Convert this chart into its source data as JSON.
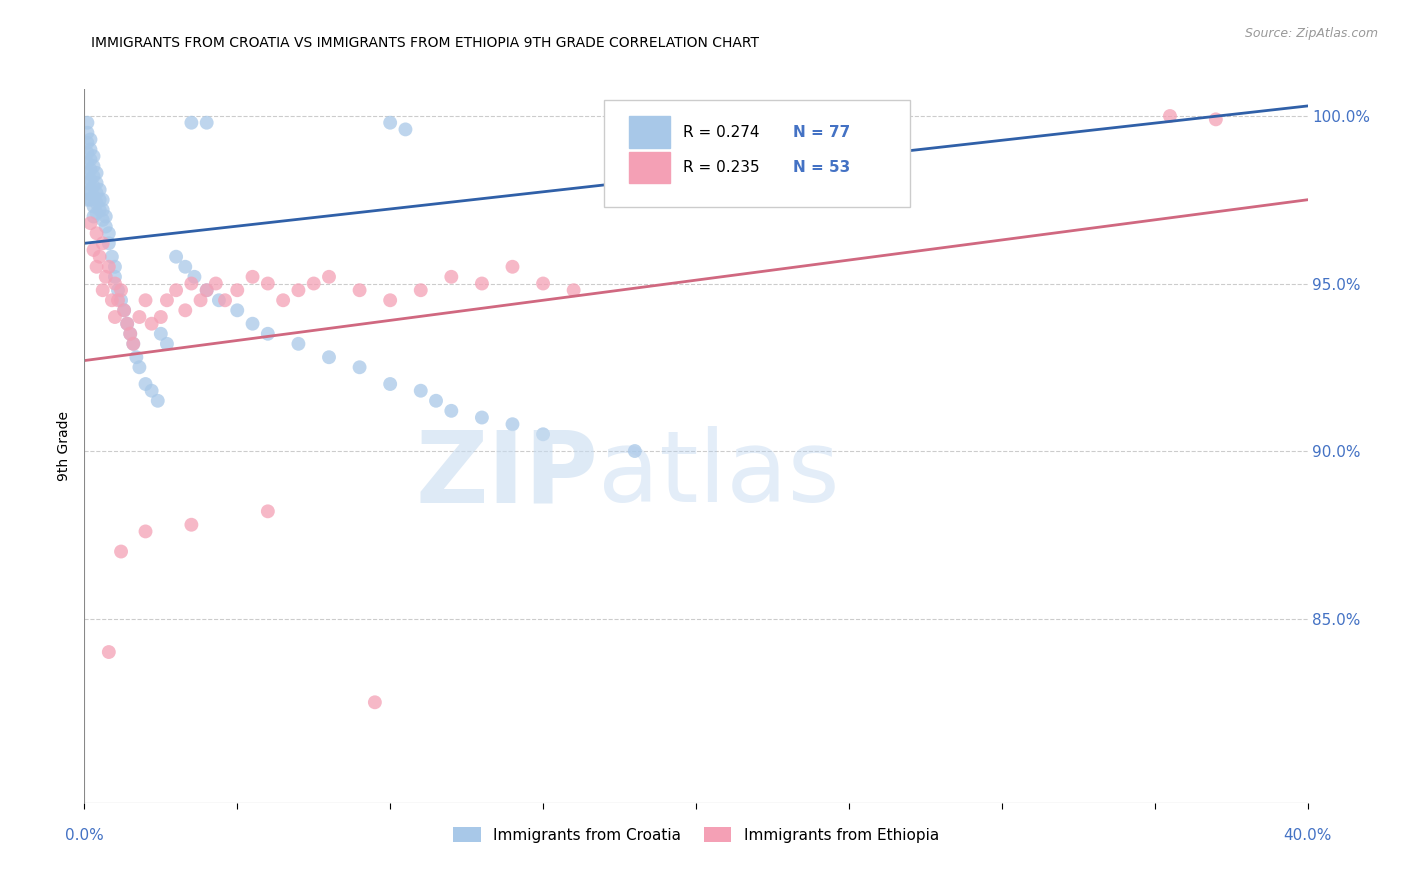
{
  "title": "IMMIGRANTS FROM CROATIA VS IMMIGRANTS FROM ETHIOPIA 9TH GRADE CORRELATION CHART",
  "source": "Source: ZipAtlas.com",
  "ylabel": "9th Grade",
  "yticks": [
    "100.0%",
    "95.0%",
    "90.0%",
    "85.0%"
  ],
  "ytick_vals": [
    1.0,
    0.95,
    0.9,
    0.85
  ],
  "color_croatia": "#A8C8E8",
  "color_ethiopia": "#F4A0B5",
  "color_line_croatia": "#3060A8",
  "color_line_ethiopia": "#D06880",
  "color_axis_labels": "#4472C4",
  "xlim": [
    0.0,
    0.4
  ],
  "ylim": [
    0.795,
    1.008
  ],
  "croatia_trend": [
    0.962,
    1.003
  ],
  "ethiopia_trend": [
    0.927,
    0.975
  ],
  "croatia_x": [
    0.001,
    0.001,
    0.001,
    0.001,
    0.001,
    0.001,
    0.001,
    0.001,
    0.001,
    0.002,
    0.002,
    0.002,
    0.002,
    0.002,
    0.002,
    0.002,
    0.003,
    0.003,
    0.003,
    0.003,
    0.003,
    0.003,
    0.003,
    0.004,
    0.004,
    0.004,
    0.004,
    0.004,
    0.005,
    0.005,
    0.005,
    0.006,
    0.006,
    0.006,
    0.007,
    0.007,
    0.008,
    0.008,
    0.009,
    0.01,
    0.01,
    0.011,
    0.012,
    0.013,
    0.014,
    0.015,
    0.016,
    0.017,
    0.018,
    0.02,
    0.022,
    0.024,
    0.025,
    0.027,
    0.03,
    0.033,
    0.036,
    0.04,
    0.044,
    0.05,
    0.055,
    0.06,
    0.07,
    0.08,
    0.09,
    0.1,
    0.11,
    0.115,
    0.12,
    0.13,
    0.14,
    0.15,
    0.18,
    0.035,
    0.04,
    0.1,
    0.105
  ],
  "croatia_y": [
    0.998,
    0.995,
    0.992,
    0.989,
    0.986,
    0.983,
    0.98,
    0.977,
    0.975,
    0.993,
    0.99,
    0.987,
    0.984,
    0.981,
    0.978,
    0.975,
    0.988,
    0.985,
    0.982,
    0.979,
    0.976,
    0.973,
    0.97,
    0.983,
    0.98,
    0.977,
    0.974,
    0.971,
    0.978,
    0.975,
    0.972,
    0.975,
    0.972,
    0.969,
    0.97,
    0.967,
    0.965,
    0.962,
    0.958,
    0.955,
    0.952,
    0.948,
    0.945,
    0.942,
    0.938,
    0.935,
    0.932,
    0.928,
    0.925,
    0.92,
    0.918,
    0.915,
    0.935,
    0.932,
    0.958,
    0.955,
    0.952,
    0.948,
    0.945,
    0.942,
    0.938,
    0.935,
    0.932,
    0.928,
    0.925,
    0.92,
    0.918,
    0.915,
    0.912,
    0.91,
    0.908,
    0.905,
    0.9,
    0.998,
    0.998,
    0.998,
    0.996
  ],
  "ethiopia_x": [
    0.002,
    0.003,
    0.004,
    0.004,
    0.005,
    0.006,
    0.006,
    0.007,
    0.008,
    0.009,
    0.01,
    0.01,
    0.011,
    0.012,
    0.013,
    0.014,
    0.015,
    0.016,
    0.018,
    0.02,
    0.022,
    0.025,
    0.027,
    0.03,
    0.033,
    0.035,
    0.038,
    0.04,
    0.043,
    0.046,
    0.05,
    0.055,
    0.06,
    0.065,
    0.07,
    0.075,
    0.08,
    0.09,
    0.1,
    0.11,
    0.12,
    0.13,
    0.14,
    0.15,
    0.16,
    0.008,
    0.012,
    0.02,
    0.035,
    0.06,
    0.095,
    0.355,
    0.37
  ],
  "ethiopia_y": [
    0.968,
    0.96,
    0.965,
    0.955,
    0.958,
    0.962,
    0.948,
    0.952,
    0.955,
    0.945,
    0.95,
    0.94,
    0.945,
    0.948,
    0.942,
    0.938,
    0.935,
    0.932,
    0.94,
    0.945,
    0.938,
    0.94,
    0.945,
    0.948,
    0.942,
    0.95,
    0.945,
    0.948,
    0.95,
    0.945,
    0.948,
    0.952,
    0.95,
    0.945,
    0.948,
    0.95,
    0.952,
    0.948,
    0.945,
    0.948,
    0.952,
    0.95,
    0.955,
    0.95,
    0.948,
    0.84,
    0.87,
    0.876,
    0.878,
    0.882,
    0.825,
    1.0,
    0.999
  ]
}
